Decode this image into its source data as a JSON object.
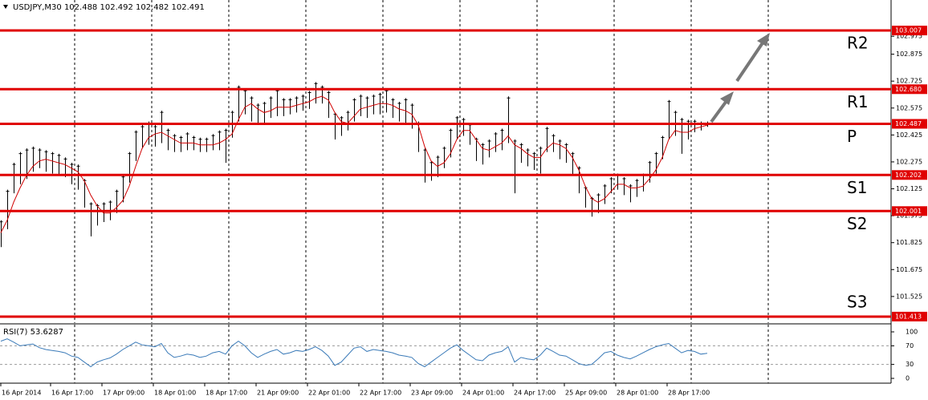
{
  "chart_data": [
    {
      "type": "hilo",
      "title": "USDJPY,M30  102.488 102.492 102.482 102.491",
      "color": "#000000",
      "xlim": [
        -0.125,
        138.625
      ],
      "ylim": [
        101.377,
        103.177
      ],
      "yticks": [
        102.975,
        102.875,
        102.725,
        102.575,
        102.425,
        102.275,
        102.125,
        101.975,
        101.825,
        101.675,
        101.525
      ],
      "xticks": [
        {
          "value": 0,
          "label": "16 Apr 2014"
        },
        {
          "value": 7.75,
          "label": "16 Apr 17:00"
        },
        {
          "value": 15.75,
          "label": "17 Apr 09:00"
        },
        {
          "value": 23.75,
          "label": "18 Apr 01:00"
        },
        {
          "value": 31.75,
          "label": "18 Apr 17:00"
        },
        {
          "value": 39.75,
          "label": "21 Apr 09:00"
        },
        {
          "value": 47.75,
          "label": "22 Apr 01:00"
        },
        {
          "value": 55.75,
          "label": "22 Apr 17:00"
        },
        {
          "value": 63.75,
          "label": "23 Apr 09:00"
        },
        {
          "value": 71.75,
          "label": "24 Apr 01:00"
        },
        {
          "value": 79.75,
          "label": "24 Apr 17:00"
        },
        {
          "value": 87.75,
          "label": "25 Apr 09:00"
        },
        {
          "value": 95.75,
          "label": "28 Apr 01:00"
        },
        {
          "value": 103.75,
          "label": "28 Apr 17:00"
        }
      ],
      "xgrid": [
        11.5,
        23.5,
        35.5,
        47.5,
        59.5,
        71.5,
        83.5,
        95.5,
        107.5,
        119.5
      ],
      "high": [
        101.95,
        102.12,
        102.27,
        102.33,
        102.35,
        102.36,
        102.35,
        102.34,
        102.33,
        102.32,
        102.3,
        102.27,
        102.26,
        102.18,
        102.05,
        102.04,
        102.05,
        102.06,
        102.12,
        102.2,
        102.33,
        102.45,
        102.48,
        102.5,
        102.48,
        102.56,
        102.46,
        102.43,
        102.42,
        102.44,
        102.42,
        102.41,
        102.41,
        102.43,
        102.45,
        102.46,
        102.56,
        102.7,
        102.68,
        102.64,
        102.6,
        102.61,
        102.64,
        102.68,
        102.63,
        102.63,
        102.64,
        102.65,
        102.67,
        102.72,
        102.7,
        102.67,
        102.55,
        102.53,
        102.56,
        102.63,
        102.65,
        102.64,
        102.65,
        102.66,
        102.68,
        102.63,
        102.61,
        102.63,
        102.6,
        102.5,
        102.35,
        102.28,
        102.31,
        102.36,
        102.46,
        102.53,
        102.52,
        102.49,
        102.41,
        102.38,
        102.4,
        102.44,
        102.46,
        102.64,
        102.4,
        102.38,
        102.35,
        102.33,
        102.36,
        102.47,
        102.43,
        102.4,
        102.38,
        102.33,
        102.25,
        102.14,
        102.08,
        102.1,
        102.15,
        102.19,
        102.21,
        102.19,
        102.15,
        102.18,
        102.21,
        102.28,
        102.33,
        102.42,
        102.62,
        102.56,
        102.52,
        102.51,
        102.51,
        102.5,
        102.5
      ],
      "low": [
        101.8,
        101.9,
        102.1,
        102.15,
        102.18,
        102.22,
        102.24,
        102.22,
        102.21,
        102.2,
        102.19,
        102.15,
        102.12,
        102.02,
        101.86,
        101.92,
        101.94,
        101.95,
        101.99,
        102.05,
        102.16,
        102.28,
        102.35,
        102.37,
        102.36,
        102.38,
        102.34,
        102.33,
        102.33,
        102.34,
        102.34,
        102.33,
        102.33,
        102.34,
        102.34,
        102.27,
        102.41,
        102.5,
        102.54,
        102.5,
        102.48,
        102.49,
        102.52,
        102.53,
        102.53,
        102.54,
        102.55,
        102.56,
        102.57,
        102.6,
        102.6,
        102.52,
        102.4,
        102.42,
        102.45,
        102.5,
        102.53,
        102.52,
        102.54,
        102.54,
        102.55,
        102.52,
        102.5,
        102.48,
        102.46,
        102.33,
        102.16,
        102.17,
        102.19,
        102.24,
        102.3,
        102.4,
        102.42,
        102.37,
        102.28,
        102.26,
        102.3,
        102.33,
        102.34,
        102.38,
        102.1,
        102.27,
        102.25,
        102.23,
        102.21,
        102.33,
        102.33,
        102.29,
        102.27,
        102.2,
        102.1,
        102.02,
        101.97,
        101.99,
        102.04,
        102.1,
        102.12,
        102.09,
        102.05,
        102.08,
        102.11,
        102.16,
        102.21,
        102.29,
        102.4,
        102.42,
        102.32,
        102.4,
        102.44,
        102.45,
        102.47
      ],
      "ma": {
        "color": "#d00000",
        "values": [
          101.88,
          101.95,
          102.05,
          102.13,
          102.2,
          102.25,
          102.28,
          102.29,
          102.28,
          102.27,
          102.26,
          102.24,
          102.22,
          102.17,
          102.09,
          102.03,
          101.99,
          101.99,
          102.02,
          102.06,
          102.14,
          102.25,
          102.35,
          102.41,
          102.43,
          102.44,
          102.42,
          102.4,
          102.38,
          102.38,
          102.38,
          102.37,
          102.37,
          102.37,
          102.38,
          102.4,
          102.43,
          102.51,
          102.58,
          102.6,
          102.57,
          102.55,
          102.56,
          102.58,
          102.58,
          102.58,
          102.59,
          102.6,
          102.61,
          102.63,
          102.64,
          102.62,
          102.55,
          102.5,
          102.49,
          102.53,
          102.57,
          102.58,
          102.59,
          102.6,
          102.6,
          102.59,
          102.57,
          102.56,
          102.54,
          102.48,
          102.36,
          102.28,
          102.25,
          102.27,
          102.32,
          102.4,
          102.45,
          102.45,
          102.4,
          102.35,
          102.34,
          102.36,
          102.38,
          102.42,
          102.37,
          102.35,
          102.32,
          102.3,
          102.3,
          102.35,
          102.38,
          102.37,
          102.35,
          102.3,
          102.23,
          102.14,
          102.07,
          102.05,
          102.07,
          102.11,
          102.15,
          102.15,
          102.13,
          102.13,
          102.14,
          102.18,
          102.23,
          102.3,
          102.4,
          102.45,
          102.44,
          102.44,
          102.46,
          102.47,
          102.48
        ]
      },
      "levels": [
        {
          "name": "R2",
          "value": 103.007
        },
        {
          "name": "R1",
          "value": 102.68,
          "label": "102.680"
        },
        {
          "name": "P",
          "value": 102.487
        },
        {
          "name": "S1",
          "value": 102.202
        },
        {
          "name": "S2",
          "value": 102.001
        },
        {
          "name": "S3",
          "value": 101.413
        }
      ],
      "level_color": "#e00000"
    },
    {
      "type": "line",
      "title": "RSI(7) 53.6287",
      "color": "#3a7ab8",
      "ylim": [
        -10.3,
        115.5
      ],
      "yticks": [
        100,
        70,
        30,
        0
      ],
      "levels": [
        70,
        30
      ],
      "values": [
        80,
        85,
        78,
        70,
        72,
        74,
        66,
        62,
        60,
        58,
        55,
        48,
        45,
        35,
        25,
        35,
        40,
        44,
        52,
        62,
        70,
        78,
        72,
        70,
        68,
        75,
        55,
        45,
        48,
        52,
        50,
        45,
        48,
        55,
        58,
        52,
        70,
        80,
        70,
        55,
        45,
        52,
        58,
        62,
        52,
        55,
        60,
        58,
        62,
        68,
        60,
        48,
        28,
        35,
        50,
        65,
        68,
        58,
        62,
        60,
        58,
        55,
        50,
        48,
        45,
        32,
        25,
        35,
        45,
        55,
        65,
        72,
        60,
        50,
        40,
        38,
        50,
        55,
        58,
        68,
        35,
        45,
        42,
        40,
        50,
        65,
        58,
        50,
        48,
        40,
        32,
        28,
        30,
        42,
        55,
        58,
        50,
        45,
        42,
        48,
        55,
        62,
        68,
        72,
        75,
        65,
        55,
        60,
        58,
        52,
        54
      ]
    }
  ]
}
